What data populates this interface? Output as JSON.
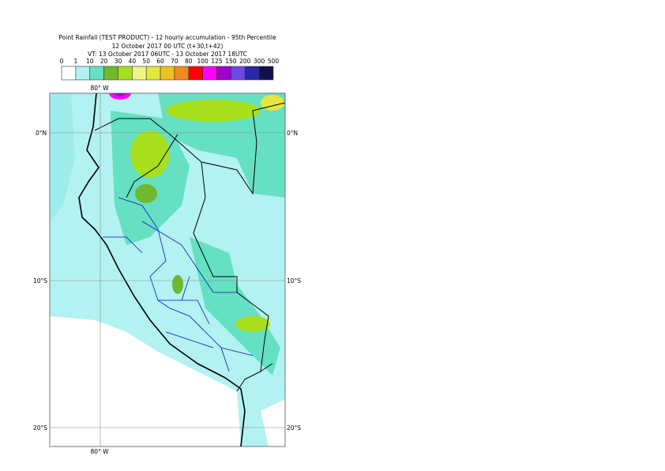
{
  "header": {
    "title": "Point Rainfall (TEST PRODUCT) - 12 hourly accumulation - 95th Percentile",
    "subtitle": "12 October 2017 00 UTC (t+30,t+42)",
    "valid_time": "VT: 13 October 2017 06UTC - 13 October 2017 18UTC"
  },
  "legend": {
    "labels": [
      "0",
      "1",
      "10",
      "20",
      "30",
      "40",
      "50",
      "60",
      "70",
      "80",
      "100",
      "125",
      "150",
      "200",
      "300",
      "500"
    ],
    "colors": [
      "#ffffff",
      "#b2f2f2",
      "#66e0c2",
      "#70b830",
      "#a8e020",
      "#eef58a",
      "#e6e640",
      "#f0c020",
      "#f08a20",
      "#ff0000",
      "#ff00ff",
      "#a000c8",
      "#7048e8",
      "#2828a8",
      "#101050"
    ]
  },
  "map": {
    "lon_top": "80° W",
    "lon_bottom": "80° W",
    "lat_labels": [
      "0°N",
      "10°S",
      "20°S"
    ]
  }
}
